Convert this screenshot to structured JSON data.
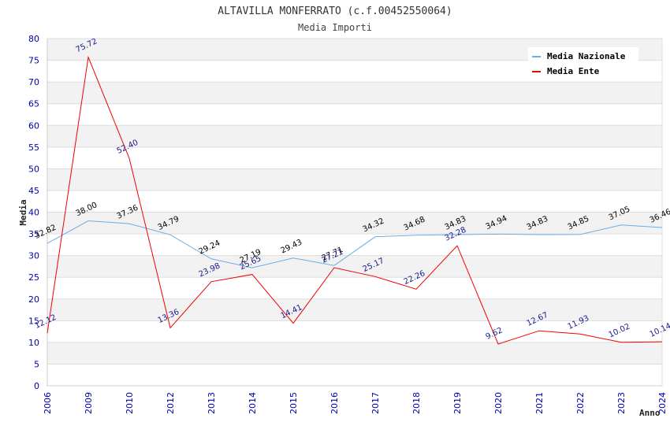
{
  "chart_data": {
    "type": "line",
    "title": "ALTAVILLA MONFERRATO (c.f.00452550064)",
    "subtitle": "Media Importi",
    "xlabel": "Anno",
    "ylabel": "Media",
    "ylim": [
      0,
      80
    ],
    "yticks": [
      "0",
      "5",
      "10",
      "15",
      "20",
      "25",
      "30",
      "35",
      "40",
      "45",
      "50",
      "55",
      "60",
      "65",
      "70",
      "75",
      "80"
    ],
    "categories": [
      "2006",
      "2009",
      "2010",
      "2012",
      "2013",
      "2014",
      "2015",
      "2016",
      "2017",
      "2018",
      "2019",
      "2020",
      "2021",
      "2022",
      "2023",
      "2024"
    ],
    "series": [
      {
        "name": "Media Nazionale",
        "color": "#6aaee8",
        "values": [
          32.82,
          38.0,
          37.36,
          34.79,
          29.24,
          27.19,
          29.43,
          27.71,
          34.32,
          34.68,
          34.83,
          34.94,
          34.83,
          34.85,
          37.05,
          36.46
        ],
        "labels": [
          "32.82",
          "38.00",
          "37.36",
          "34.79",
          "29.24",
          "27.19",
          "29.43",
          "27.71",
          "34.32",
          "34.68",
          "34.83",
          "34.94",
          "34.83",
          "34.85",
          "37.05",
          "36.46"
        ]
      },
      {
        "name": "Media Ente",
        "color": "#ee0000",
        "values": [
          12.12,
          75.72,
          52.4,
          13.36,
          23.98,
          25.65,
          14.41,
          27.21,
          25.17,
          22.26,
          32.28,
          9.62,
          12.67,
          11.93,
          10.02,
          10.14
        ],
        "labels": [
          "12.12",
          "75.72",
          "52.40",
          "13.36",
          "23.98",
          "25.65",
          "14.41",
          "27.21",
          "25.17",
          "22.26",
          "32.28",
          "9.62",
          "12.67",
          "11.93",
          "10.02",
          "10.14"
        ]
      }
    ],
    "legend_position": "top-right",
    "grid": true
  }
}
